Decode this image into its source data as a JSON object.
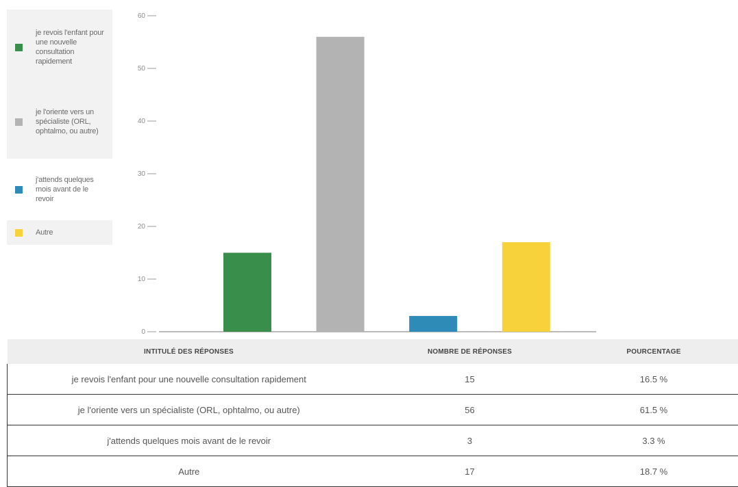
{
  "chart_data": {
    "type": "bar",
    "categories": [
      "je revois l'enfant pour une nouvelle consultation rapidement",
      "je l'oriente vers un spécialiste (ORL, ophtalmo, ou autre)",
      "j'attends quelques mois avant de le revoir",
      "Autre"
    ],
    "values": [
      15,
      56,
      3,
      17
    ],
    "colors": [
      "#388e4a",
      "#b3b3b3",
      "#2e8bb8",
      "#f7d23b"
    ],
    "ylim": [
      0,
      60
    ],
    "yticks": [
      0,
      10,
      20,
      30,
      40,
      50,
      60
    ],
    "grid": false,
    "legend_position": "left",
    "legend": [
      {
        "label": "je revois l'enfant pour une nouvelle consultation rapidement",
        "color": "#388e4a"
      },
      {
        "label": "je l'oriente vers un spécialiste (ORL, ophtalmo, ou autre)",
        "color": "#b3b3b3"
      },
      {
        "label": "j'attends quelques mois avant de le revoir",
        "color": "#2e8bb8"
      },
      {
        "label": "Autre",
        "color": "#f7d23b"
      }
    ]
  },
  "table": {
    "headers": [
      "INTITULÉ DES RÉPONSES",
      "NOMBRE DE RÉPONSES",
      "POURCENTAGE"
    ],
    "rows": [
      [
        "je revois l'enfant pour une nouvelle consultation rapidement",
        "15",
        "16.5 %"
      ],
      [
        "je l'oriente vers un spécialiste (ORL, ophtalmo, ou autre)",
        "56",
        "61.5 %"
      ],
      [
        "j'attends quelques mois avant de le revoir",
        "3",
        "3.3 %"
      ],
      [
        "Autre",
        "17",
        "18.7 %"
      ]
    ]
  }
}
